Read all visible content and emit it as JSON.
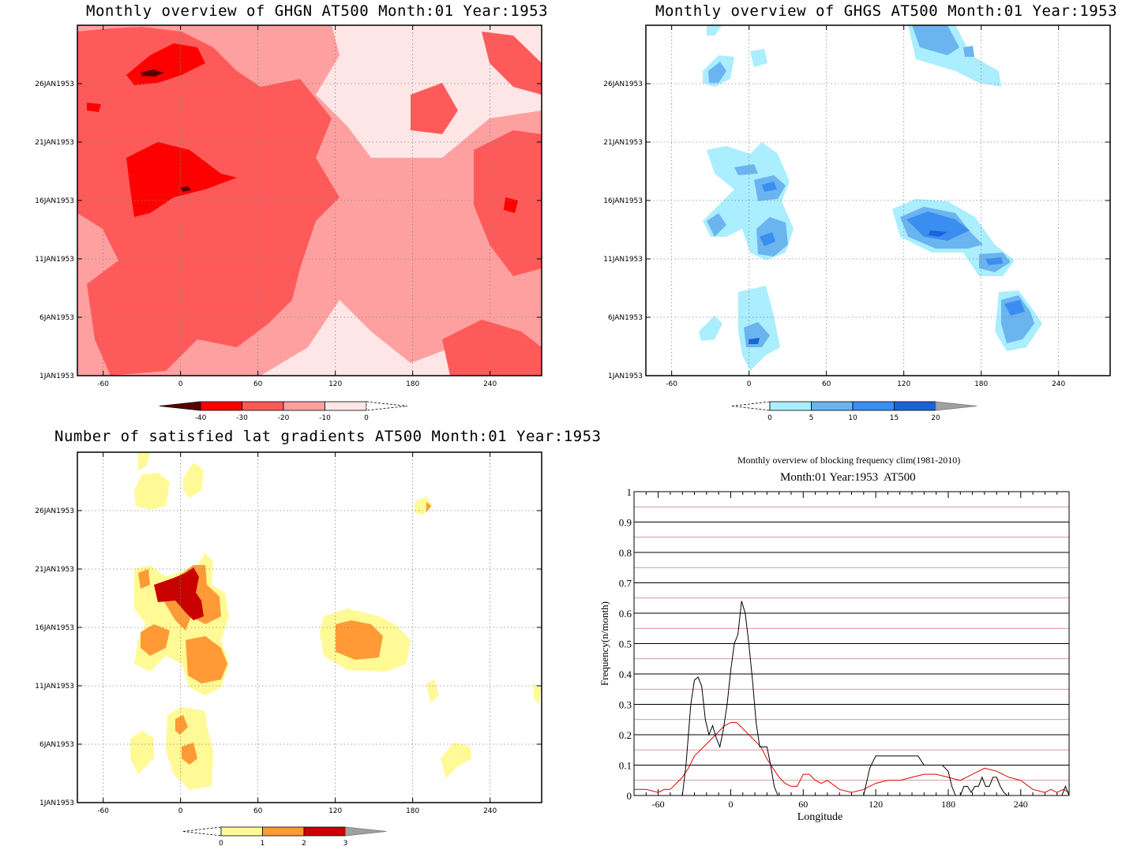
{
  "chart_data": [
    {
      "type": "heatmap",
      "title": "Monthly overview of GHGN AT500 Month:01 Year:1953",
      "x_ticks": [
        "-60",
        "0",
        "60",
        "120",
        "180",
        "240"
      ],
      "x_range": [
        -80,
        280
      ],
      "y_ticks": [
        "1JAN1953",
        "6JAN1953",
        "11JAN1953",
        "16JAN1953",
        "21JAN1953",
        "26JAN1953"
      ],
      "colorbar": {
        "labels": [
          "-40",
          "-30",
          "-20",
          "-10",
          "0"
        ],
        "colors": [
          "#5a0000",
          "#ff0000",
          "#ff5a5a",
          "#ffa0a0",
          "#ffe6e6"
        ]
      },
      "grid": true
    },
    {
      "type": "heatmap",
      "title": "Monthly overview of GHGS AT500 Month:01 Year:1953",
      "x_ticks": [
        "-60",
        "0",
        "60",
        "120",
        "180",
        "240"
      ],
      "x_range": [
        -80,
        280
      ],
      "y_ticks": [
        "1JAN1953",
        "6JAN1953",
        "11JAN1953",
        "16JAN1953",
        "21JAN1953",
        "26JAN1953"
      ],
      "colorbar": {
        "labels": [
          "0",
          "5",
          "10",
          "15",
          "20"
        ],
        "colors": [
          "#aaeeff",
          "#6ab4f0",
          "#3a8ef0",
          "#1a64d8",
          "#a0a0a0"
        ]
      },
      "grid": true
    },
    {
      "type": "heatmap",
      "title": "Number of satisfied lat gradients AT500 Month:01 Year:1953",
      "x_ticks": [
        "-60",
        "0",
        "60",
        "120",
        "180",
        "240"
      ],
      "x_range": [
        -80,
        280
      ],
      "y_ticks": [
        "1JAN1953",
        "6JAN1953",
        "11JAN1953",
        "16JAN1953",
        "21JAN1953",
        "26JAN1953"
      ],
      "colorbar": {
        "labels": [
          "0",
          "1",
          "2",
          "3"
        ],
        "colors": [
          "#fffa96",
          "#ff9a36",
          "#c80000",
          "#a0a0a0"
        ]
      },
      "grid": true
    },
    {
      "type": "line",
      "title": "Monthly overview of blocking frequency clim(1981-2010)",
      "subtitle": "Month:01 Year:1953  AT500",
      "xlabel": "Longitude",
      "ylabel": "Frequency(n/month)",
      "x_ticks": [
        "-60",
        "0",
        "60",
        "120",
        "180",
        "240"
      ],
      "y_ticks": [
        "0",
        "0.1",
        "0.2",
        "0.3",
        "0.4",
        "0.5",
        "0.6",
        "0.7",
        "0.8",
        "0.9",
        "1"
      ],
      "xlim": [
        -80,
        280
      ],
      "ylim": [
        0,
        1
      ],
      "series": [
        {
          "color": "#000000",
          "x": [
            -80,
            -40,
            -37,
            -33,
            -30,
            -27,
            -24,
            -21,
            -18,
            -15,
            -12,
            -9,
            -6,
            -3,
            0,
            3,
            6,
            9,
            12,
            15,
            18,
            21,
            24,
            27,
            30,
            33,
            36,
            39,
            42,
            45,
            110,
            115,
            120,
            125,
            130,
            135,
            140,
            145,
            150,
            155,
            160,
            165,
            170,
            175,
            180,
            183,
            186,
            190,
            193,
            196,
            199,
            202,
            205,
            208,
            211,
            214,
            217,
            220,
            223,
            226,
            229,
            232,
            235,
            238,
            241,
            244,
            247,
            250,
            253,
            256,
            259,
            262,
            265,
            268,
            271,
            274,
            277,
            280
          ],
          "y": [
            0,
            0,
            0.1,
            0.3,
            0.38,
            0.39,
            0.36,
            0.25,
            0.2,
            0.23,
            0.19,
            0.16,
            0.22,
            0.3,
            0.41,
            0.5,
            0.53,
            0.64,
            0.6,
            0.5,
            0.38,
            0.24,
            0.16,
            0.16,
            0.16,
            0.1,
            0.03,
            0,
            0,
            0,
            0,
            0.09,
            0.13,
            0.13,
            0.13,
            0.13,
            0.13,
            0.13,
            0.13,
            0.13,
            0.1,
            0.1,
            0.1,
            0.1,
            0.08,
            0.03,
            0,
            0,
            0.03,
            0.03,
            0.01,
            0.03,
            0.03,
            0.06,
            0.03,
            0.03,
            0.06,
            0.06,
            0.03,
            0.01,
            0,
            0,
            0,
            0,
            0,
            0,
            0,
            0,
            0,
            0,
            0,
            0,
            0,
            0,
            0,
            0,
            0.03,
            0
          ]
        },
        {
          "color": "#e00000",
          "x": [
            -80,
            -70,
            -60,
            -55,
            -50,
            -45,
            -40,
            -35,
            -30,
            -25,
            -20,
            -15,
            -10,
            -5,
            0,
            5,
            10,
            15,
            20,
            25,
            30,
            35,
            40,
            45,
            50,
            55,
            60,
            65,
            70,
            75,
            80,
            90,
            100,
            110,
            120,
            130,
            140,
            150,
            160,
            170,
            180,
            190,
            200,
            210,
            220,
            230,
            240,
            250,
            260,
            265,
            270,
            275,
            280
          ],
          "y": [
            0.02,
            0.02,
            0.01,
            0.02,
            0.02,
            0.04,
            0.06,
            0.09,
            0.13,
            0.15,
            0.17,
            0.19,
            0.21,
            0.23,
            0.24,
            0.24,
            0.22,
            0.2,
            0.18,
            0.16,
            0.12,
            0.09,
            0.06,
            0.04,
            0.03,
            0.03,
            0.07,
            0.07,
            0.05,
            0.04,
            0.05,
            0.02,
            0.01,
            0.02,
            0.04,
            0.05,
            0.05,
            0.06,
            0.07,
            0.07,
            0.06,
            0.05,
            0.07,
            0.09,
            0.08,
            0.06,
            0.05,
            0.02,
            0.01,
            0.02,
            0.01,
            0.02,
            0.01
          ]
        }
      ],
      "grid": true
    }
  ]
}
